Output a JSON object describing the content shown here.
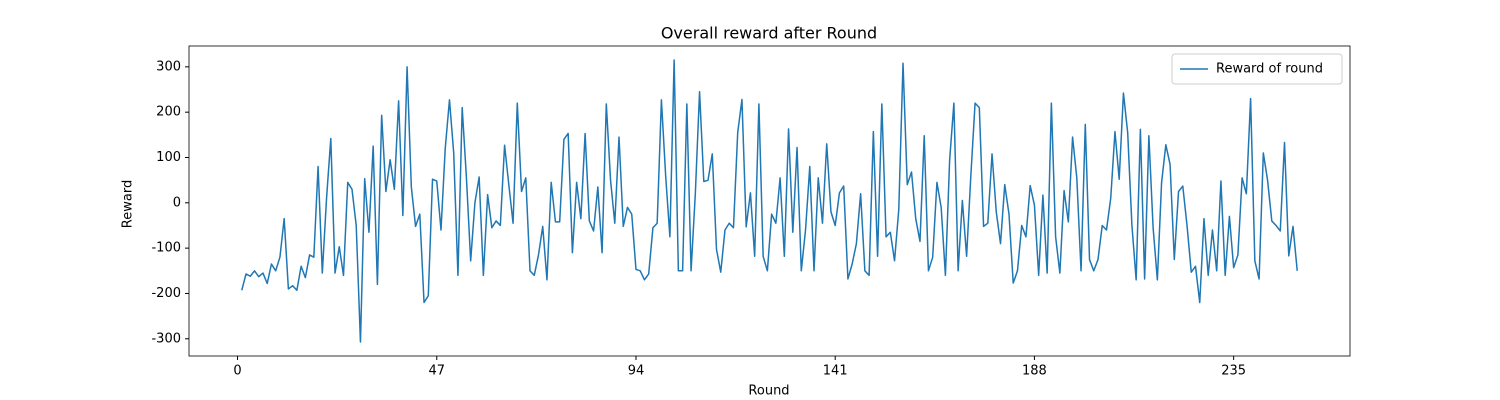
{
  "chart_data": {
    "type": "line",
    "title": "Overall reward after Round",
    "x_label": "Round",
    "y_label": "Reward",
    "x": [
      1,
      2,
      3,
      4,
      5,
      6,
      7,
      8,
      9,
      10,
      11,
      12,
      13,
      14,
      15,
      16,
      17,
      18,
      19,
      20,
      21,
      22,
      23,
      24,
      25,
      26,
      27,
      28,
      29,
      30,
      31,
      32,
      33,
      34,
      35,
      36,
      37,
      38,
      39,
      40,
      41,
      42,
      43,
      44,
      45,
      46,
      47,
      48,
      49,
      50,
      51,
      52,
      53,
      54,
      55,
      56,
      57,
      58,
      59,
      60,
      61,
      62,
      63,
      64,
      65,
      66,
      67,
      68,
      69,
      70,
      71,
      72,
      73,
      74,
      75,
      76,
      77,
      78,
      79,
      80,
      81,
      82,
      83,
      84,
      85,
      86,
      87,
      88,
      89,
      90,
      91,
      92,
      93,
      94,
      95,
      96,
      97,
      98,
      99,
      100,
      101,
      102,
      103,
      104,
      105,
      106,
      107,
      108,
      109,
      110,
      111,
      112,
      113,
      114,
      115,
      116,
      117,
      118,
      119,
      120,
      121,
      122,
      123,
      124,
      125,
      126,
      127,
      128,
      129,
      130,
      131,
      132,
      133,
      134,
      135,
      136,
      137,
      138,
      139,
      140,
      141,
      142,
      143,
      144,
      145,
      146,
      147,
      148,
      149,
      150,
      151,
      152,
      153,
      154,
      155,
      156,
      157,
      158,
      159,
      160,
      161,
      162,
      163,
      164,
      165,
      166,
      167,
      168,
      169,
      170,
      171,
      172,
      173,
      174,
      175,
      176,
      177,
      178,
      179,
      180,
      181,
      182,
      183,
      184,
      185,
      186,
      187,
      188,
      189,
      190,
      191,
      192,
      193,
      194,
      195,
      196,
      197,
      198,
      199,
      200,
      201,
      202,
      203,
      204,
      205,
      206,
      207,
      208,
      209,
      210,
      211,
      212,
      213,
      214,
      215,
      216,
      217,
      218,
      219,
      220,
      221,
      222,
      223,
      224,
      225,
      226,
      227,
      228,
      229,
      230,
      231,
      232,
      233,
      234,
      235,
      236,
      237,
      238,
      239,
      240,
      241,
      242,
      243,
      244,
      245,
      246,
      247,
      248,
      249,
      250
    ],
    "series": [
      {
        "name": "Reward of round",
        "color": "#1f77b4",
        "values": [
          -193,
          -157,
          -162,
          -150,
          -163,
          -155,
          -178,
          -135,
          -150,
          -120,
          -35,
          -190,
          -183,
          -193,
          -140,
          -165,
          -115,
          -120,
          80,
          -155,
          10,
          142,
          -155,
          -97,
          -160,
          45,
          30,
          -50,
          -307,
          53,
          -65,
          125,
          -180,
          193,
          25,
          95,
          30,
          225,
          -28,
          300,
          35,
          -52,
          -25,
          -220,
          -205,
          52,
          48,
          -60,
          120,
          227,
          110,
          -160,
          210,
          55,
          -128,
          0,
          57,
          -160,
          18,
          -55,
          -40,
          -50,
          127,
          40,
          -45,
          220,
          25,
          55,
          -150,
          -160,
          -115,
          -52,
          -170,
          45,
          -42,
          -42,
          140,
          153,
          -110,
          45,
          -35,
          153,
          -40,
          -62,
          35,
          -110,
          218,
          50,
          -45,
          145,
          -52,
          -10,
          -25,
          -147,
          -150,
          -170,
          -157,
          -55,
          -45,
          227,
          60,
          -75,
          315,
          -150,
          -150,
          218,
          -150,
          20,
          245,
          47,
          50,
          108,
          -103,
          -153,
          -60,
          -45,
          -55,
          155,
          228,
          -53,
          22,
          -118,
          218,
          -118,
          -150,
          -25,
          -45,
          55,
          -118,
          163,
          -65,
          122,
          -150,
          -60,
          80,
          -150,
          55,
          -45,
          130,
          -20,
          -50,
          22,
          37,
          -168,
          -135,
          -90,
          20,
          -150,
          -160,
          157,
          -118,
          218,
          -75,
          -65,
          -128,
          -15,
          308,
          40,
          68,
          -35,
          -85,
          148,
          -150,
          -120,
          45,
          -10,
          -160,
          95,
          220,
          -150,
          5,
          -118,
          60,
          220,
          210,
          -52,
          -45,
          108,
          -20,
          -90,
          40,
          -25,
          -177,
          -150,
          -50,
          -75,
          38,
          -5,
          -160,
          17,
          -155,
          220,
          -75,
          -155,
          27,
          -42,
          145,
          55,
          -150,
          173,
          -125,
          -150,
          -125,
          -50,
          -60,
          10,
          157,
          52,
          242,
          155,
          -50,
          -170,
          162,
          -168,
          148,
          -55,
          -170,
          45,
          128,
          85,
          -125,
          25,
          37,
          -50,
          -153,
          -140,
          -220,
          -35,
          -160,
          -60,
          -150,
          48,
          -160,
          -30,
          -143,
          -115,
          55,
          20,
          230,
          -128,
          -168,
          110,
          50,
          -40,
          -50,
          -62,
          133,
          -117,
          -52,
          -150
        ]
      }
    ],
    "xlim": [
      -11.45,
      262.45
    ],
    "xticks": [
      0,
      47,
      94,
      141,
      188,
      235
    ],
    "ylim": [
      -338,
      346
    ],
    "yticks": [
      -300,
      -200,
      -100,
      0,
      100,
      200,
      300
    ],
    "legend": "upper right"
  }
}
